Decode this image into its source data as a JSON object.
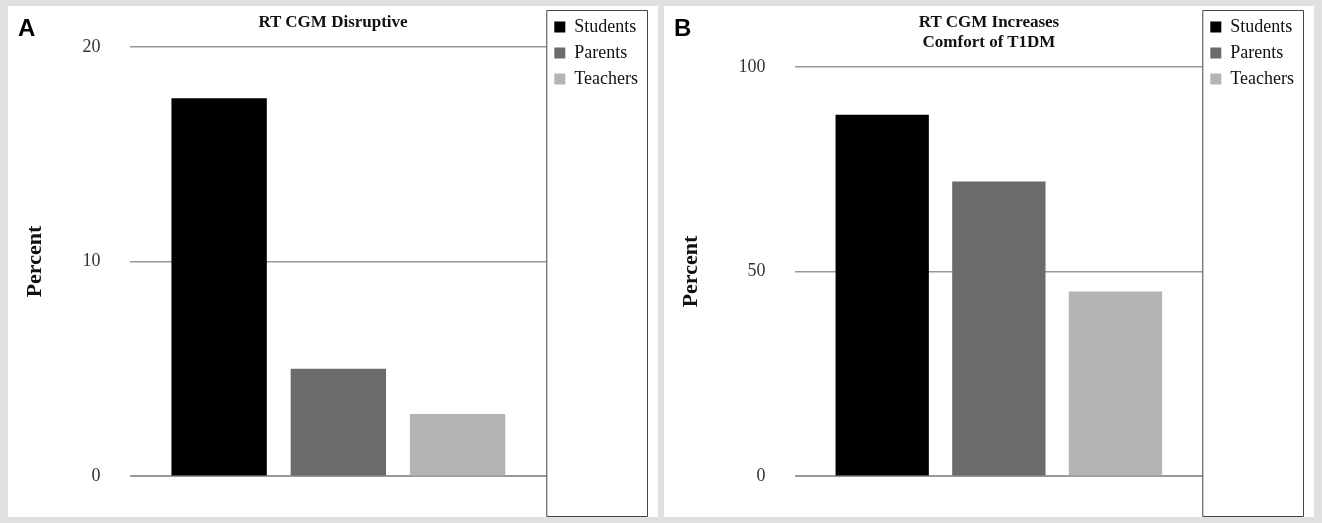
{
  "chart_data": [
    {
      "type": "bar",
      "title": "RT CGM Disruptive",
      "ylabel": "Percent",
      "categories": [
        null
      ],
      "series": [
        {
          "name": "Students",
          "color": "#000000",
          "values": [
            17.6
          ]
        },
        {
          "name": "Parents",
          "color": "#6b6b6b",
          "values": [
            5.0
          ]
        },
        {
          "name": "Teachers",
          "color": "#b4b4b4",
          "values": [
            2.9
          ]
        }
      ],
      "ylim": [
        0,
        20
      ],
      "yticks": [
        0,
        10,
        20
      ],
      "grid": "y",
      "legend": "top right",
      "annotations": [
        "A"
      ]
    },
    {
      "type": "bar",
      "title": "RT CGM Increases\nComfort of T1DM",
      "ylabel": "Percent",
      "categories": [
        null
      ],
      "series": [
        {
          "name": "Students",
          "color": "#000000",
          "values": [
            88.3
          ]
        },
        {
          "name": "Parents",
          "color": "#6b6b6b",
          "values": [
            72.0
          ]
        },
        {
          "name": "Teachers",
          "color": "#b4b4b4",
          "values": [
            45.1
          ]
        }
      ],
      "ylim": [
        0,
        100
      ],
      "yticks": [
        0,
        50,
        100
      ],
      "grid": "y",
      "legend": "top right",
      "annotations": [
        "B"
      ]
    }
  ]
}
